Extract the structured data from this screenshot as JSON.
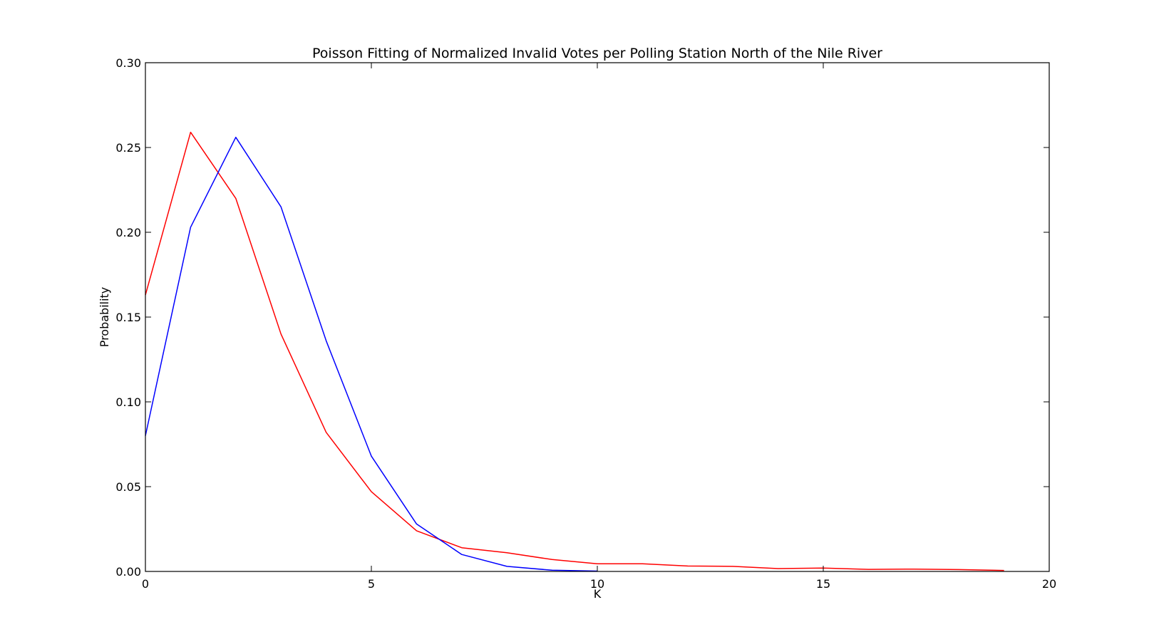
{
  "chart_data": {
    "type": "line",
    "title": "Poisson Fitting of Normalized Invalid Votes per Polling Station North of the Nile River",
    "xlabel": "K",
    "ylabel": "Probability",
    "xlim": [
      0,
      20
    ],
    "ylim": [
      0,
      0.3
    ],
    "xticks": [
      "0",
      "5",
      "10",
      "15",
      "20"
    ],
    "yticks": [
      "0.00",
      "0.05",
      "0.10",
      "0.15",
      "0.20",
      "0.25",
      "0.30"
    ],
    "grid": false,
    "series": [
      {
        "color": "#ff0000",
        "x": [
          0,
          1,
          2,
          3,
          4,
          5,
          6,
          7,
          8,
          9,
          10,
          11,
          12,
          13,
          14,
          15,
          16,
          17,
          18,
          19
        ],
        "values": [
          0.163,
          0.259,
          0.22,
          0.14,
          0.082,
          0.047,
          0.024,
          0.014,
          0.011,
          0.007,
          0.0045,
          0.0045,
          0.0032,
          0.003,
          0.0017,
          0.002,
          0.0012,
          0.0014,
          0.0011,
          0.0006
        ]
      },
      {
        "color": "#0000ff",
        "x": [
          0,
          1,
          2,
          3,
          4,
          5,
          6,
          7,
          8,
          9,
          10
        ],
        "values": [
          0.08,
          0.203,
          0.256,
          0.215,
          0.136,
          0.068,
          0.028,
          0.01,
          0.003,
          0.0007,
          0.0002
        ]
      }
    ]
  }
}
